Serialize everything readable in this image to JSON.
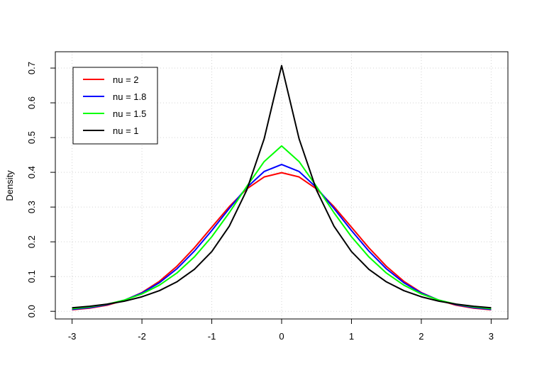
{
  "chart_data": {
    "type": "line",
    "y_label": "Density",
    "x": [
      -3,
      -2.75,
      -2.5,
      -2.25,
      -2,
      -1.75,
      -1.5,
      -1.25,
      -1,
      -0.75,
      -0.5,
      -0.25,
      0,
      0.25,
      0.5,
      0.75,
      1,
      1.25,
      1.5,
      1.75,
      2,
      2.25,
      2.5,
      2.75,
      3
    ],
    "series": [
      {
        "name": "nu = 2",
        "color": "#ff0000",
        "values": [
          0.0044,
          0.0091,
          0.0175,
          0.0317,
          0.054,
          0.0863,
          0.1295,
          0.1826,
          0.242,
          0.3011,
          0.3521,
          0.3867,
          0.3989,
          0.3867,
          0.3521,
          0.3011,
          0.242,
          0.1826,
          0.1295,
          0.0863,
          0.054,
          0.0317,
          0.0175,
          0.0091,
          0.0044
        ]
      },
      {
        "name": "nu = 1.8",
        "color": "#0000ff",
        "values": [
          0.0056,
          0.0105,
          0.0189,
          0.0323,
          0.0528,
          0.0823,
          0.1223,
          0.1731,
          0.2325,
          0.296,
          0.356,
          0.4023,
          0.4226,
          0.4023,
          0.356,
          0.296,
          0.2325,
          0.1731,
          0.1223,
          0.0823,
          0.0528,
          0.0323,
          0.0189,
          0.0105,
          0.0056
        ]
      },
      {
        "name": "nu = 1.5",
        "color": "#00ff00",
        "values": [
          0.0076,
          0.0126,
          0.0204,
          0.0324,
          0.05,
          0.0753,
          0.1101,
          0.1564,
          0.2146,
          0.2837,
          0.3591,
          0.4309,
          0.476,
          0.4309,
          0.3591,
          0.2837,
          0.2146,
          0.1564,
          0.1101,
          0.0753,
          0.05,
          0.0324,
          0.0204,
          0.0126,
          0.0076
        ]
      },
      {
        "name": "nu = 1",
        "color": "#000000",
        "values": [
          0.0102,
          0.0145,
          0.0206,
          0.0293,
          0.0418,
          0.0595,
          0.0848,
          0.1207,
          0.1719,
          0.2448,
          0.3487,
          0.4965,
          0.7071,
          0.4965,
          0.3487,
          0.2448,
          0.1719,
          0.1207,
          0.0848,
          0.0595,
          0.0418,
          0.0293,
          0.0206,
          0.0145,
          0.0102
        ]
      }
    ],
    "xlim": [
      -3.24,
      3.24
    ],
    "ylim": [
      -0.022,
      0.747
    ],
    "xticks": [
      -3,
      -2,
      -1,
      0,
      1,
      2,
      3
    ],
    "yticks": [
      0.0,
      0.1,
      0.2,
      0.3,
      0.4,
      0.5,
      0.6,
      0.7
    ],
    "grid": true,
    "legend": "top-left"
  }
}
